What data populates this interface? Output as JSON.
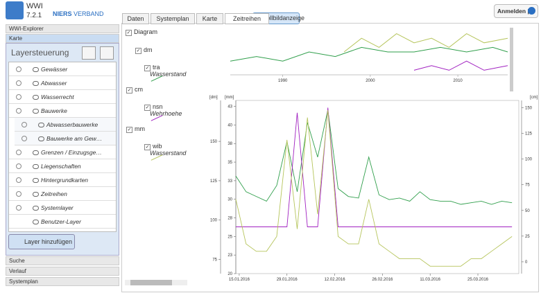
{
  "header": {
    "app": "WWI",
    "version": "7.2.1",
    "logo_a": "NIERS",
    "logo_b": "VERBAND",
    "login": "Anmelden |"
  },
  "sidebar": {
    "explorer": "WWI-Explorer",
    "map": "Karte",
    "panel_title": "Layersteuerung",
    "layers": [
      {
        "label": "Gewässer"
      },
      {
        "label": "Abwasser"
      },
      {
        "label": "Wasserrecht"
      },
      {
        "label": "Bauwerke"
      },
      {
        "label": "Abwasserbauwerke",
        "sub": true
      },
      {
        "label": "Bauwerke am Gew…",
        "sub": true
      },
      {
        "label": "Grenzen / Einzugsge…"
      },
      {
        "label": "Liegenschaften"
      },
      {
        "label": "Hintergrundkarten"
      },
      {
        "label": "Zeitreihen"
      },
      {
        "label": "Systemlayer"
      },
      {
        "label": "Benutzer-Layer",
        "nocheck": true
      }
    ],
    "add_button": "Layer hinzufügen",
    "bottom": [
      "Suche",
      "Verlauf",
      "Systemplan"
    ]
  },
  "tabs": [
    "Daten",
    "Systemplan",
    "Karte",
    "Zeitreihen"
  ],
  "active_tab": 3,
  "fullscreen": "Vollbildanzeige",
  "diagram_toggle": "Diagram",
  "chart_data": {
    "type": "line",
    "x": [
      "14.01.2016",
      "17.01.2016",
      "20.01.2016",
      "23.01.2016",
      "26.01.2016",
      "29.01.2016",
      "01.02.2016",
      "04.02.2016",
      "07.02.2016",
      "10.02.2016",
      "13.02.2016",
      "16.02.2016",
      "19.02.2016",
      "22.02.2016",
      "25.02.2016",
      "28.02.2016",
      "02.03.2016",
      "05.03.2016",
      "08.03.2016",
      "11.03.2016",
      "14.03.2016",
      "17.03.2016",
      "20.03.2016",
      "23.03.2016",
      "26.03.2016",
      "29.03.2016",
      "01.04.2016",
      "04.04.2016"
    ],
    "xlim": [
      "14.01.2016",
      "06.04.2016"
    ],
    "xticks": [
      "15.01.2016",
      "29.01.2016",
      "12.02.2016",
      "26.02.2016",
      "11.03.2016",
      "25.03.2016"
    ],
    "ylabel": "[mm]",
    "ylim": [
      20,
      43.3
    ],
    "yticks": [
      20,
      {
        "value": 22.5,
        "label": "23"
      },
      25,
      {
        "value": 27.5,
        "label": "28"
      },
      30,
      {
        "value": 32.5,
        "label": "33"
      },
      35,
      {
        "value": 37.5,
        "label": "38"
      },
      40,
      {
        "value": 42.5,
        "label": "43"
      }
    ],
    "y2label": "[cm]",
    "y2lim": [
      -11.5,
      157
    ],
    "y2ticks": [
      0,
      25,
      50,
      75,
      100,
      125,
      150
    ],
    "y3label": "[dm]",
    "y3lim": [
      66,
      176
    ],
    "y3ticks": [
      75,
      100,
      125,
      150
    ],
    "series": [
      {
        "unit": "dm",
        "name": "tra",
        "label": "Wasserstand",
        "color": "#2e9e4a",
        "axis": "y3",
        "values": [
          128,
          118,
          115,
          112,
          122,
          150,
          118,
          162,
          140,
          170,
          120,
          115,
          114,
          140,
          116,
          113,
          114,
          112,
          118,
          113,
          112,
          112,
          110,
          111,
          112,
          110,
          112,
          111
        ]
      },
      {
        "unit": "cm",
        "name": "nsn",
        "label": "Wehrhoehe",
        "color": "#a020c0",
        "axis": "y2",
        "values": [
          34,
          34,
          34,
          34,
          34,
          34,
          145,
          34,
          34,
          150,
          34,
          34,
          34,
          34,
          34,
          34,
          34,
          34,
          34,
          34,
          34,
          34,
          34,
          34,
          34,
          34,
          34,
          34
        ]
      },
      {
        "unit": "mm",
        "name": "wib",
        "label": "Wasserstand",
        "color": "#b5c45a",
        "axis": "y",
        "values": [
          30,
          24,
          23,
          23,
          25,
          38,
          26,
          41,
          28,
          42,
          25,
          24,
          24,
          30,
          24,
          23,
          22,
          22,
          22,
          21,
          21,
          21,
          21,
          22,
          22,
          23,
          24,
          25
        ]
      }
    ],
    "overview": {
      "xlim": [
        1984,
        2015.7
      ],
      "xticks": [
        1990,
        2000,
        2010
      ],
      "ylim": [
        0,
        10
      ],
      "series": [
        {
          "color": "#2e9e4a",
          "x": [
            1984,
            1987,
            1990,
            1993,
            1996,
            1999,
            2002,
            2005,
            2008,
            2011,
            2014,
            2015.7
          ],
          "values": [
            3,
            4,
            3,
            5,
            4,
            6,
            5,
            5,
            6,
            5,
            6,
            5
          ]
        },
        {
          "color": "#b5c45a",
          "x": [
            1997,
            1999,
            2001,
            2003,
            2005,
            2007,
            2009,
            2011,
            2013,
            2015.7
          ],
          "values": [
            5,
            8,
            6,
            9,
            7,
            8,
            6,
            9,
            7,
            8
          ]
        },
        {
          "color": "#a020c0",
          "x": [
            2005,
            2007,
            2009,
            2011,
            2013,
            2015.7
          ],
          "values": [
            1,
            2,
            1,
            3,
            1,
            2
          ]
        }
      ]
    }
  }
}
